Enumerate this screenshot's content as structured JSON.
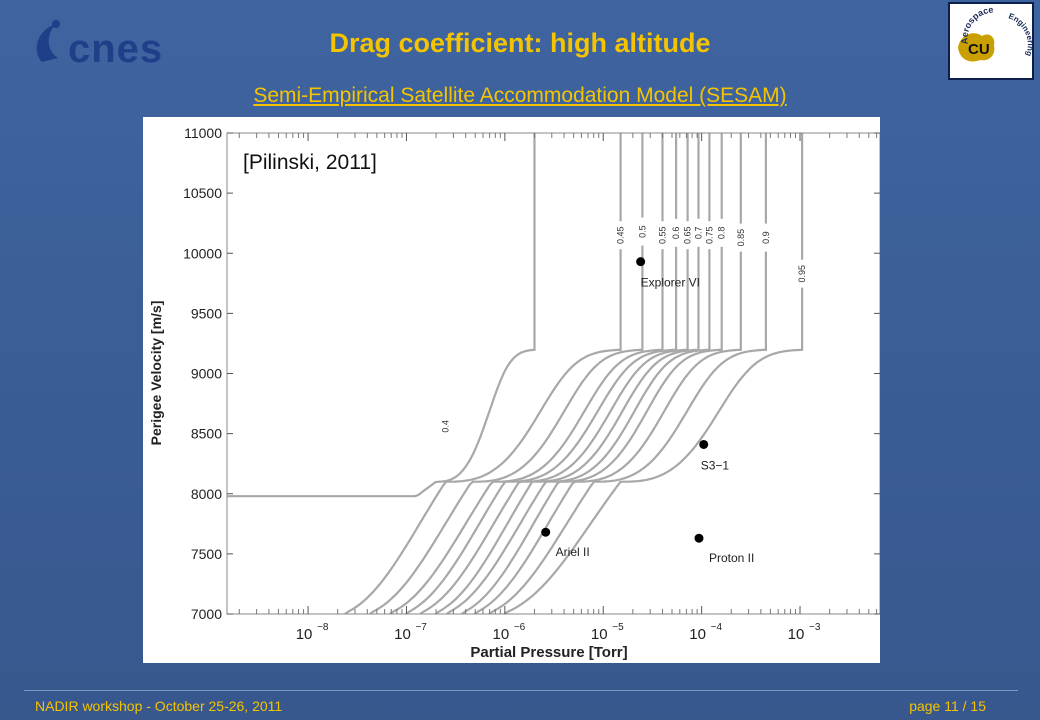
{
  "slide": {
    "title": "Drag coefficient: high altitude",
    "subtitle": "Semi-Empirical Satellite Accommodation Model (SESAM)",
    "footer_left": "NADIR workshop  -  October 25-26, 2011",
    "footer_right": "page 11 / 15",
    "logos": {
      "cnes": {
        "text": "cnes",
        "color": "#1f3f88"
      },
      "cu": {
        "text_top": "Aerospace",
        "text_side": "Engineering",
        "monogram": "CU"
      }
    },
    "colors": {
      "background": "#3a5d96",
      "accent": "#f5c400"
    }
  },
  "chart_data": {
    "type": "line",
    "citation": "[Pilinski, 2011]",
    "xlabel": "Partial Pressure [Torr]",
    "ylabel": "Perigee Velocity [m/s]",
    "xscale": "log",
    "xlim": [
      1.5e-09,
      0.0065
    ],
    "ylim": [
      7000,
      11000
    ],
    "x_ticks": [
      {
        "value": 1e-08,
        "mantissa": "10",
        "exp": "−8"
      },
      {
        "value": 1e-07,
        "mantissa": "10",
        "exp": "−7"
      },
      {
        "value": 1e-06,
        "mantissa": "10",
        "exp": "−6"
      },
      {
        "value": 1e-05,
        "mantissa": "10",
        "exp": "−5"
      },
      {
        "value": 0.0001,
        "mantissa": "10",
        "exp": "−4"
      },
      {
        "value": 0.001,
        "mantissa": "10",
        "exp": "−3"
      }
    ],
    "y_ticks": [
      7000,
      7500,
      8000,
      8500,
      9000,
      9500,
      10000,
      10500,
      11000
    ],
    "line_color": "#a8a8a8",
    "series": [
      {
        "name": "0.4",
        "x_low": 1.5e-09,
        "x_mid": 2e-07,
        "x_high": 2e-06,
        "label_y": 8630,
        "min_velocity": 7980
      },
      {
        "name": "0.45",
        "x_low": 2.4e-08,
        "x_mid": 2.5e-07,
        "x_high": 1.5e-05,
        "label_y": 10150
      },
      {
        "name": "0.5",
        "x_low": 4.3e-08,
        "x_mid": 4.6e-07,
        "x_high": 2.5e-05,
        "label_y": 10180
      },
      {
        "name": "0.55",
        "x_low": 6.9e-08,
        "x_mid": 7.4e-07,
        "x_high": 4e-05,
        "label_y": 10150
      },
      {
        "name": "0.6",
        "x_low": 1e-07,
        "x_mid": 1e-06,
        "x_high": 5.5e-05,
        "label_y": 10170
      },
      {
        "name": "0.65",
        "x_low": 1.4e-07,
        "x_mid": 1.4e-06,
        "x_high": 7.2e-05,
        "label_y": 10150
      },
      {
        "name": "0.7",
        "x_low": 2e-07,
        "x_mid": 1.9e-06,
        "x_high": 9.3e-05,
        "label_y": 10170
      },
      {
        "name": "0.75",
        "x_low": 2.6e-07,
        "x_mid": 2.6e-06,
        "x_high": 0.00012,
        "label_y": 10150
      },
      {
        "name": "0.8",
        "x_low": 3.7e-07,
        "x_mid": 3.5e-06,
        "x_high": 0.00016,
        "label_y": 10170
      },
      {
        "name": "0.85",
        "x_low": 5e-07,
        "x_mid": 5e-06,
        "x_high": 0.00025,
        "label_y": 10130
      },
      {
        "name": "0.9",
        "x_low": 7e-07,
        "x_mid": 8e-06,
        "x_high": 0.00045,
        "label_y": 10130
      },
      {
        "name": "0.95",
        "x_low": 1e-06,
        "x_mid": 1.5e-05,
        "x_high": 0.00105,
        "label_y": 9830
      }
    ],
    "points": [
      {
        "name": "Explorer VI",
        "x": 2.4e-05,
        "y": 9930
      },
      {
        "name": "S3−1",
        "x": 0.000105,
        "y": 8410
      },
      {
        "name": "Ariel II",
        "x": 2.6e-06,
        "y": 7680
      },
      {
        "name": "Proton II",
        "x": 9.4e-05,
        "y": 7630
      }
    ]
  }
}
